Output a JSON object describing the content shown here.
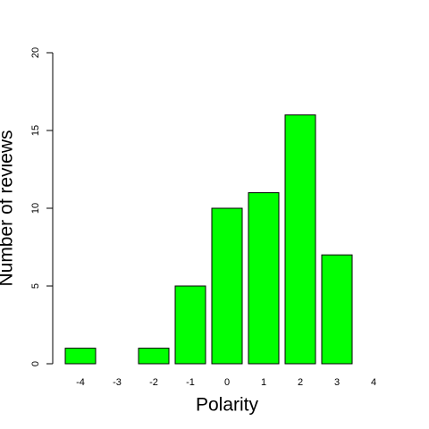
{
  "chart_data": {
    "type": "bar",
    "x_label": "Polarity",
    "y_label": "Number of reviews",
    "categories": [
      "-4",
      "-3",
      "-2",
      "-1",
      "0",
      "1",
      "2",
      "3",
      "4"
    ],
    "values": [
      1,
      0,
      1,
      5,
      10,
      11,
      16,
      7,
      0
    ],
    "color": "#00ff00",
    "ylim": [
      0,
      20
    ],
    "yticks": [
      0,
      5,
      10,
      15,
      20
    ]
  }
}
